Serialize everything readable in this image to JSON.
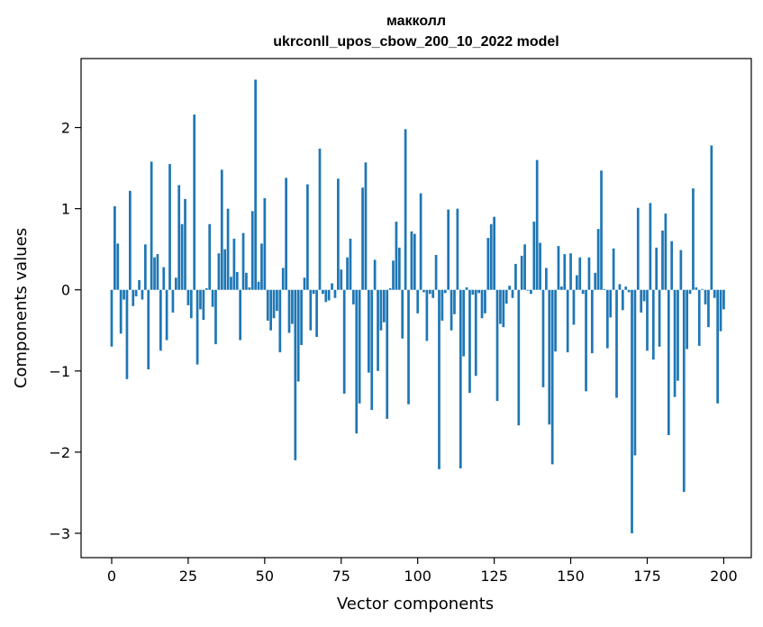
{
  "chart_data": {
    "type": "bar",
    "title_line1": "макколл",
    "title_line2": "ukrconll_upos_cbow_200_10_2022 model",
    "xlabel": "Vector components",
    "ylabel": "Components values",
    "xlim": [
      -10,
      209
    ],
    "ylim": [
      -3.3,
      2.85
    ],
    "xticks": [
      0,
      25,
      50,
      75,
      100,
      125,
      150,
      175,
      200
    ],
    "xtick_labels": [
      "0",
      "25",
      "50",
      "75",
      "100",
      "125",
      "150",
      "175",
      "200"
    ],
    "yticks": [
      -3,
      -2,
      -1,
      0,
      1,
      2
    ],
    "ytick_labels": [
      "−3",
      "−2",
      "−1",
      "0",
      "1",
      "2"
    ],
    "bar_color": "#1f77b4",
    "grid": false,
    "values": [
      -0.7,
      1.03,
      0.57,
      -0.54,
      -0.12,
      -1.1,
      1.22,
      -0.2,
      -0.08,
      0.12,
      -0.12,
      0.56,
      -0.98,
      1.58,
      0.4,
      0.44,
      -0.75,
      0.28,
      -0.62,
      1.55,
      -0.28,
      0.15,
      1.29,
      0.81,
      1.12,
      -0.19,
      -0.35,
      2.16,
      -0.92,
      -0.24,
      -0.37,
      0.02,
      0.81,
      -0.21,
      -0.67,
      0.45,
      1.48,
      0.5,
      1.0,
      0.16,
      0.63,
      0.22,
      -0.62,
      0.7,
      0.21,
      0.03,
      0.97,
      2.59,
      0.1,
      0.57,
      1.13,
      -0.38,
      -0.5,
      -0.35,
      -0.26,
      -0.77,
      0.27,
      1.38,
      -0.53,
      -0.42,
      -2.1,
      -1.13,
      -0.68,
      0.15,
      1.3,
      -0.5,
      -0.05,
      -0.58,
      1.74,
      -0.05,
      -0.15,
      -0.13,
      0.08,
      -0.1,
      1.37,
      0.25,
      -1.28,
      0.4,
      0.63,
      -0.18,
      -1.77,
      -1.4,
      1.26,
      1.57,
      -1.02,
      -1.48,
      0.37,
      -1.0,
      -0.5,
      -0.4,
      -1.59,
      0.02,
      0.36,
      0.84,
      0.52,
      -0.6,
      1.98,
      -1.41,
      0.72,
      0.69,
      -0.29,
      1.19,
      -0.03,
      -0.63,
      -0.05,
      -0.1,
      0.43,
      -2.21,
      -0.38,
      -0.04,
      0.99,
      -0.5,
      -0.3,
      1.0,
      -2.2,
      -0.82,
      0.03,
      -1.27,
      -0.06,
      -1.06,
      -0.04,
      -0.35,
      -0.29,
      0.64,
      0.81,
      0.9,
      -1.37,
      -0.42,
      -0.46,
      -0.17,
      0.05,
      -0.1,
      0.32,
      -1.67,
      0.42,
      0.56,
      -0.01,
      -0.05,
      0.84,
      1.6,
      0.58,
      -1.2,
      0.27,
      -1.66,
      -2.15,
      -0.76,
      0.54,
      0.04,
      0.44,
      -0.77,
      0.45,
      -0.43,
      0.18,
      0.4,
      -0.05,
      -1.25,
      0.4,
      -0.78,
      0.21,
      0.75,
      1.47,
      0.01,
      -0.72,
      -0.34,
      0.51,
      -1.33,
      0.07,
      -0.25,
      0.04,
      -0.03,
      -3.0,
      -2.04,
      1.01,
      -0.28,
      -0.14,
      -0.75,
      1.07,
      -0.86,
      0.52,
      -0.7,
      0.73,
      0.94,
      -1.79,
      0.6,
      -1.32,
      -1.12,
      0.49,
      -2.49,
      -0.73,
      -0.05,
      1.25,
      0.03,
      -0.69,
      0.01,
      -0.18,
      -0.46,
      1.78,
      -0.1,
      -1.4,
      -0.51,
      -0.24
    ]
  }
}
